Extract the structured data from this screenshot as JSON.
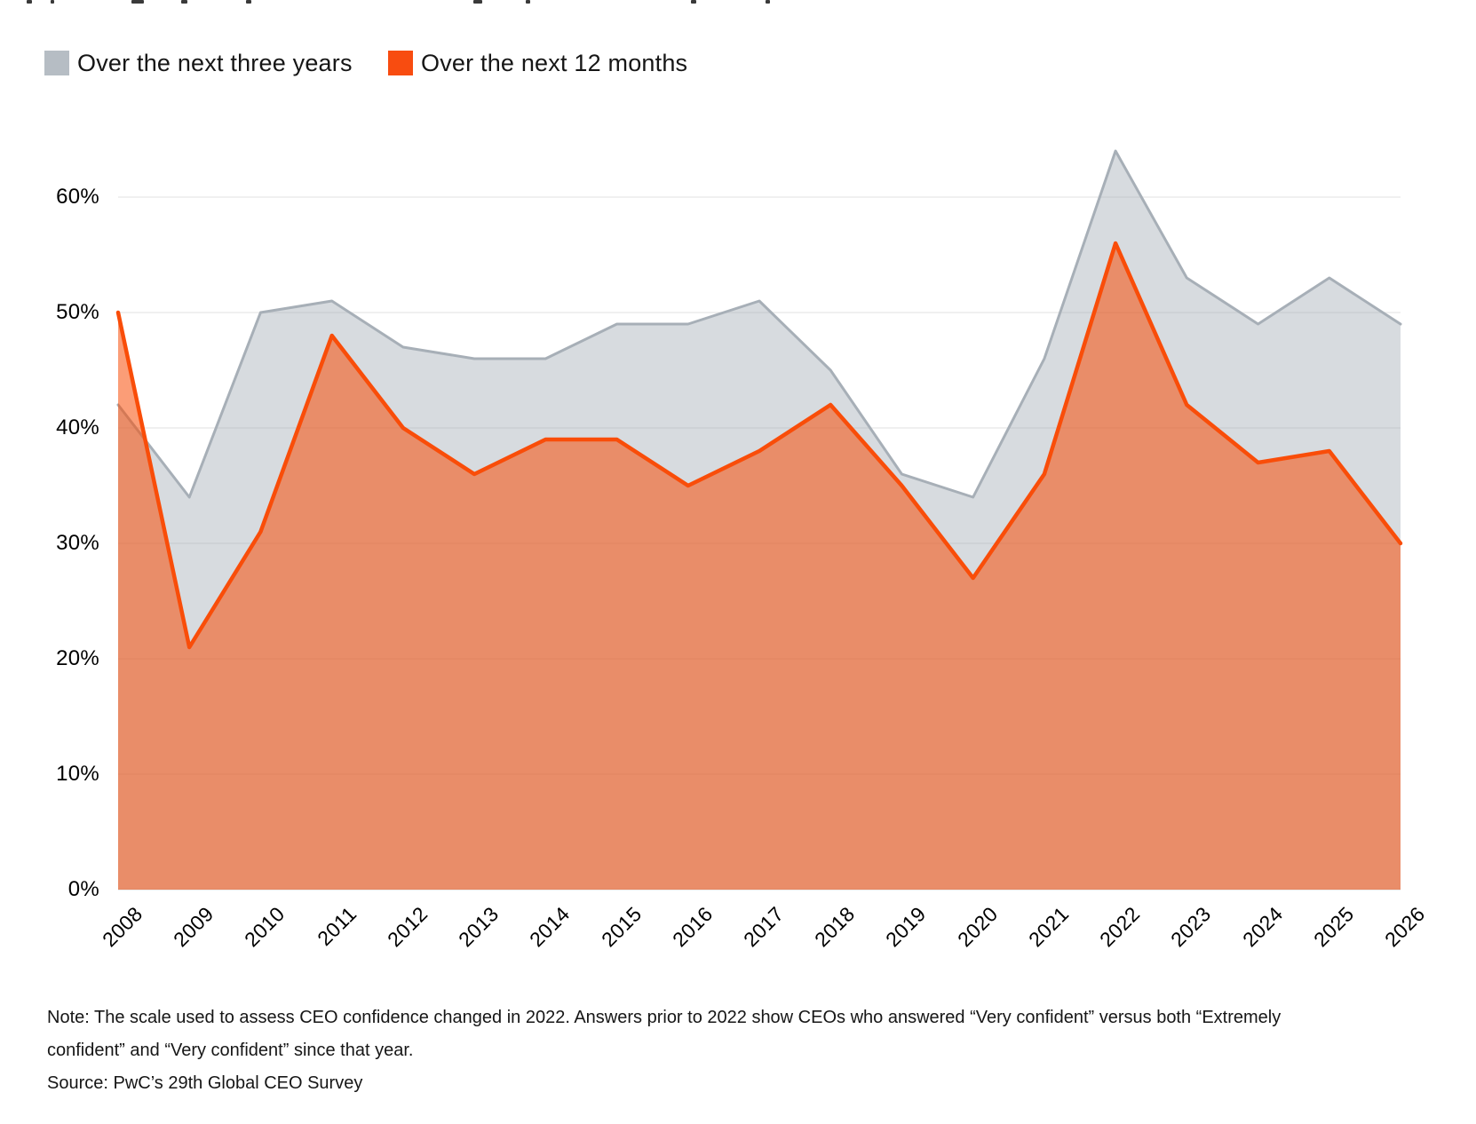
{
  "legend": {
    "items": [
      {
        "label": "Over the next three years",
        "color": "#b6bdc4"
      },
      {
        "label": "Over the next 12 months",
        "color": "#f84c10"
      }
    ]
  },
  "chart_data": {
    "type": "area",
    "x": [
      "2008",
      "2009",
      "2010",
      "2011",
      "2012",
      "2013",
      "2014",
      "2015",
      "2016",
      "2017",
      "2018",
      "2019",
      "2020",
      "2021",
      "2022",
      "2023",
      "2024",
      "2025",
      "2026"
    ],
    "y_ticks": [
      "0%",
      "10%",
      "20%",
      "30%",
      "40%",
      "50%",
      "60%"
    ],
    "ylim": [
      0,
      66
    ],
    "grid": true,
    "legend_position": "top-left",
    "series": [
      {
        "name": "Over the next three years",
        "values": [
          42,
          34,
          50,
          51,
          47,
          46,
          46,
          49,
          49,
          51,
          45,
          36,
          34,
          46,
          64,
          53,
          49,
          53,
          49
        ],
        "line_color": "#a7afb7",
        "fill_color": "rgba(167,175,183,0.45)"
      },
      {
        "name": "Over the next 12 months",
        "values": [
          50,
          21,
          31,
          48,
          40,
          36,
          39,
          39,
          35,
          38,
          42,
          35,
          27,
          36,
          56,
          42,
          37,
          38,
          30
        ],
        "line_color": "#f94d09",
        "fill_color": "rgba(248,76,8,0.55)"
      }
    ]
  },
  "note": {
    "text": "Note: The scale used to assess CEO confidence changed in 2022. Answers prior to 2022 show CEOs who answered “Very confident” versus both “Extremely confident” and “Very confident” since that year.",
    "source": "Source: PwC’s 29th Global CEO Survey"
  }
}
